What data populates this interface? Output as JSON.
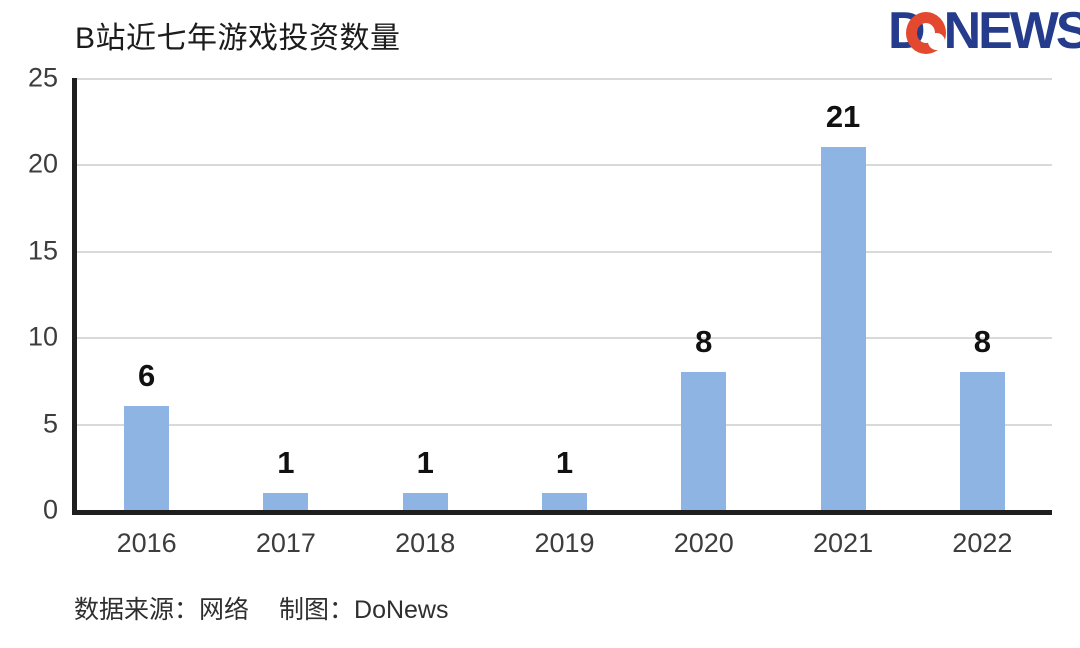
{
  "page": {
    "background": "#ffffff"
  },
  "header": {
    "title": "B站近七年游戏投资数量",
    "logo": {
      "part_d": "D",
      "part_o": "O",
      "part_news": "NEWS",
      "navy": "#253c8d",
      "red": "#e2492f"
    }
  },
  "chart_data": {
    "type": "bar",
    "title": "B站近七年游戏投资数量",
    "categories": [
      "2016",
      "2017",
      "2018",
      "2019",
      "2020",
      "2021",
      "2022"
    ],
    "values": [
      6,
      1,
      1,
      1,
      8,
      21,
      8
    ],
    "yticks": [
      0,
      5,
      10,
      15,
      20,
      25
    ],
    "ylim": [
      0,
      25
    ],
    "grid": true,
    "legend": false,
    "xlabel": "",
    "ylabel": "",
    "bar_color": "#8db4e2",
    "axis_color": "#1f1f1f",
    "gridline_color": "#d9d9d9",
    "tick_label_color": "#3d3d3d",
    "value_label_color": "#111111"
  },
  "footer": {
    "source": "数据来源：网络",
    "credit": "制图：DoNews"
  }
}
